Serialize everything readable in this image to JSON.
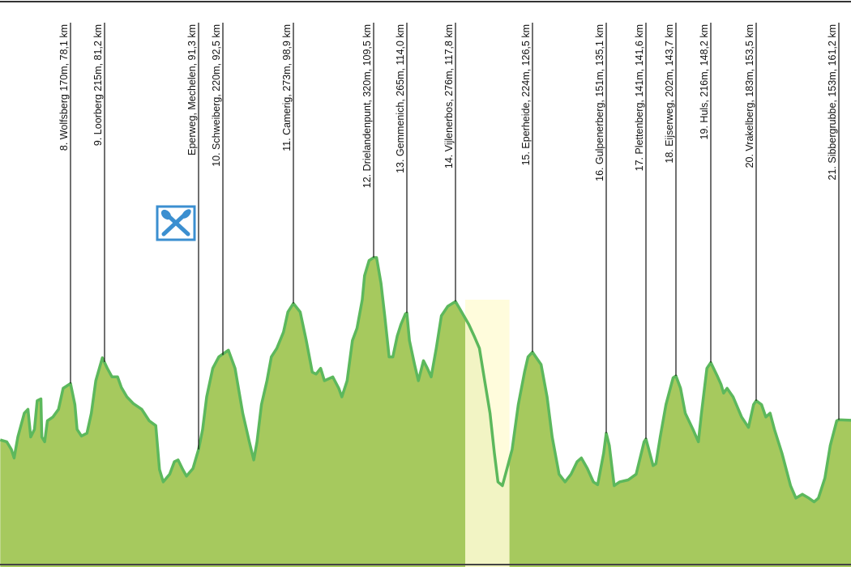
{
  "chart_data": {
    "type": "area",
    "x_unit": "km",
    "y_unit": "m",
    "colors": {
      "fill": "#a6c95e",
      "line": "#5cb85c",
      "highlight": "#fffbd6",
      "icon": "#3b8fd0"
    },
    "feed_zone_icon": "fork-knife-icon",
    "climbs": [
      {
        "label": "8. Wolfsberg 170m, 78,1 km",
        "km": 78.1,
        "elevation": 170
      },
      {
        "label": "9. Loorberg 215m, 81,2 km",
        "km": 81.2,
        "elevation": 215
      },
      {
        "label": "Eperweg, Mechelen, 91,3 km",
        "km": 91.3,
        "feed": true
      },
      {
        "label": "10. Schweiberg, 220m, 92,5 km",
        "km": 92.5,
        "elevation": 220
      },
      {
        "label": "11. Camerig, 273m, 98,9 km",
        "km": 98.9,
        "elevation": 273
      },
      {
        "label": "12. Drielandenpunt, 320m, 109,5 km",
        "km": 109.5,
        "elevation": 320
      },
      {
        "label": "13. Gemmenich, 265m, 114,0 km",
        "km": 114.0,
        "elevation": 265
      },
      {
        "label": "14. Vijlenerbos, 276m, 117,8 km",
        "km": 117.8,
        "elevation": 276
      },
      {
        "label": "15. Eperheide, 224m, 126,5 km",
        "km": 126.5,
        "elevation": 224
      },
      {
        "label": "16. Gulpenerberg, 151m, 135,1 km",
        "km": 135.1,
        "elevation": 151
      },
      {
        "label": "17. Plettenberg, 141m, 141,6 km",
        "km": 141.6,
        "elevation": 141
      },
      {
        "label": "18. Eijserweg, 202m, 143,7 km",
        "km": 143.7,
        "elevation": 202
      },
      {
        "label": "19. Huls, 216m, 148,2 km",
        "km": 148.2,
        "elevation": 216
      },
      {
        "label": "20. Vrakelberg, 183m, 153,5 km",
        "km": 153.5,
        "elevation": 183
      },
      {
        "label": "21. Sibbergrubbe, 153m, 161,2 km",
        "km": 161.2,
        "elevation": 153
      }
    ],
    "highlight_km": [
      118.9,
      123.9
    ],
    "profile": [
      [
        70.5,
        129
      ],
      [
        71.2,
        127
      ],
      [
        71.7,
        119
      ],
      [
        72.0,
        110
      ],
      [
        72.4,
        132
      ],
      [
        73.1,
        157
      ],
      [
        73.5,
        161
      ],
      [
        73.8,
        132
      ],
      [
        74.2,
        140
      ],
      [
        74.5,
        170
      ],
      [
        74.9,
        172
      ],
      [
        75.0,
        132
      ],
      [
        75.3,
        127
      ],
      [
        75.6,
        149
      ],
      [
        76.2,
        153
      ],
      [
        76.8,
        161
      ],
      [
        77.3,
        183
      ],
      [
        78.1,
        188
      ],
      [
        78.5,
        166
      ],
      [
        78.7,
        140
      ],
      [
        79.1,
        133
      ],
      [
        79.6,
        136
      ],
      [
        80.0,
        157
      ],
      [
        80.4,
        191
      ],
      [
        81.0,
        215
      ],
      [
        81.5,
        204
      ],
      [
        82.0,
        195
      ],
      [
        82.6,
        195
      ],
      [
        83.0,
        184
      ],
      [
        83.6,
        174
      ],
      [
        84.3,
        167
      ],
      [
        85.2,
        161
      ],
      [
        86.0,
        149
      ],
      [
        86.7,
        144
      ],
      [
        87.1,
        98
      ],
      [
        87.5,
        85
      ],
      [
        88.2,
        93
      ],
      [
        88.7,
        106
      ],
      [
        89.1,
        108
      ],
      [
        89.6,
        98
      ],
      [
        90.0,
        91
      ],
      [
        90.7,
        99
      ],
      [
        91.3,
        119
      ],
      [
        91.5,
        140
      ],
      [
        91.7,
        174
      ],
      [
        92.0,
        204
      ],
      [
        92.3,
        216
      ],
      [
        93.0,
        223
      ],
      [
        93.6,
        204
      ],
      [
        94.3,
        157
      ],
      [
        94.9,
        127
      ],
      [
        95.3,
        108
      ],
      [
        95.6,
        127
      ],
      [
        96.0,
        166
      ],
      [
        96.5,
        191
      ],
      [
        96.9,
        216
      ],
      [
        97.4,
        225
      ],
      [
        98.0,
        242
      ],
      [
        98.4,
        263
      ],
      [
        98.9,
        272
      ],
      [
        99.8,
        263
      ],
      [
        100.6,
        233
      ],
      [
        101.4,
        200
      ],
      [
        101.9,
        198
      ],
      [
        102.5,
        204
      ],
      [
        103.0,
        191
      ],
      [
        104.1,
        195
      ],
      [
        104.9,
        183
      ],
      [
        105.3,
        174
      ],
      [
        106.0,
        191
      ],
      [
        106.7,
        233
      ],
      [
        107.3,
        246
      ],
      [
        108.0,
        276
      ],
      [
        108.3,
        301
      ],
      [
        108.9,
        317
      ],
      [
        109.5,
        320
      ],
      [
        109.9,
        320
      ],
      [
        110.5,
        293
      ],
      [
        111.0,
        259
      ],
      [
        111.6,
        216
      ],
      [
        112.1,
        216
      ],
      [
        112.7,
        238
      ],
      [
        113.2,
        250
      ],
      [
        113.8,
        261
      ],
      [
        114.0,
        262
      ],
      [
        114.2,
        233
      ],
      [
        114.6,
        208
      ],
      [
        114.9,
        191
      ],
      [
        115.3,
        212
      ],
      [
        115.6,
        204
      ],
      [
        115.9,
        195
      ],
      [
        116.3,
        225
      ],
      [
        116.7,
        259
      ],
      [
        117.2,
        269
      ],
      [
        117.8,
        274
      ],
      [
        118.5,
        263
      ],
      [
        119.3,
        250
      ],
      [
        119.9,
        238
      ],
      [
        120.5,
        225
      ],
      [
        121.1,
        191
      ],
      [
        121.7,
        157
      ],
      [
        122.2,
        115
      ],
      [
        122.6,
        85
      ],
      [
        123.1,
        81
      ],
      [
        123.6,
        98
      ],
      [
        124.2,
        119
      ],
      [
        124.9,
        166
      ],
      [
        125.6,
        200
      ],
      [
        126.0,
        216
      ],
      [
        126.5,
        221
      ],
      [
        127.5,
        208
      ],
      [
        128.2,
        174
      ],
      [
        128.8,
        132
      ],
      [
        129.6,
        93
      ],
      [
        130.3,
        85
      ],
      [
        131.0,
        93
      ],
      [
        131.7,
        106
      ],
      [
        132.2,
        110
      ],
      [
        132.9,
        99
      ],
      [
        133.6,
        85
      ],
      [
        134.1,
        82
      ],
      [
        134.8,
        115
      ],
      [
        135.1,
        136
      ],
      [
        135.6,
        123
      ],
      [
        136.4,
        81
      ],
      [
        137.3,
        85
      ],
      [
        138.7,
        87
      ],
      [
        140.0,
        93
      ],
      [
        141.3,
        127
      ],
      [
        141.6,
        130
      ],
      [
        141.8,
        119
      ],
      [
        142.1,
        102
      ],
      [
        142.3,
        104
      ],
      [
        142.6,
        132
      ],
      [
        143.0,
        166
      ],
      [
        143.5,
        194
      ],
      [
        143.7,
        196
      ],
      [
        144.3,
        183
      ],
      [
        144.9,
        157
      ],
      [
        145.9,
        140
      ],
      [
        146.6,
        127
      ],
      [
        147.0,
        157
      ],
      [
        147.7,
        204
      ],
      [
        148.2,
        210
      ],
      [
        149.0,
        195
      ],
      [
        149.4,
        187
      ],
      [
        149.7,
        178
      ],
      [
        150.1,
        183
      ],
      [
        150.8,
        174
      ],
      [
        151.8,
        153
      ],
      [
        152.6,
        142
      ],
      [
        153.2,
        166
      ],
      [
        153.5,
        170
      ],
      [
        154.0,
        166
      ],
      [
        154.4,
        153
      ],
      [
        154.8,
        157
      ],
      [
        155.2,
        140
      ],
      [
        155.9,
        115
      ],
      [
        156.7,
        81
      ],
      [
        157.2,
        68
      ],
      [
        157.8,
        72
      ],
      [
        158.4,
        68
      ],
      [
        158.9,
        64
      ],
      [
        159.3,
        68
      ],
      [
        159.9,
        89
      ],
      [
        160.4,
        123
      ],
      [
        161.0,
        149
      ],
      [
        161.2,
        150
      ],
      [
        161.6,
        149
      ],
      [
        162.3,
        140
      ]
    ]
  }
}
